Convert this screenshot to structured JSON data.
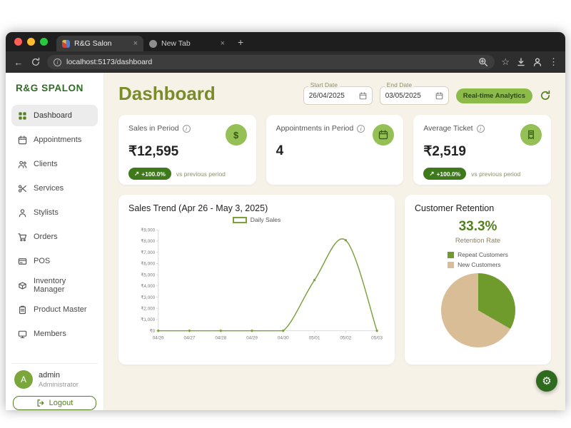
{
  "theme": {
    "brand_green": "#2f6b24",
    "heading_olive": "#7a8b29",
    "accent_green_dark": "#2f6b1f",
    "line_green": "#7ba23a",
    "icon_circle_green": "#94c056",
    "badge_green": "#8cbb4a",
    "cream_background": "#f7f2e8",
    "pie_tan": "#d9bd97"
  },
  "browser": {
    "tabs": [
      {
        "title": "R&G Salon"
      },
      {
        "title": "New Tab"
      }
    ],
    "url": "localhost:5173/dashboard"
  },
  "sidebar": {
    "brand": "R&G SPALON",
    "items": [
      {
        "label": "Dashboard"
      },
      {
        "label": "Appointments"
      },
      {
        "label": "Clients"
      },
      {
        "label": "Services"
      },
      {
        "label": "Stylists"
      },
      {
        "label": "Orders"
      },
      {
        "label": "POS"
      },
      {
        "label": "Inventory Manager"
      },
      {
        "label": "Product Master"
      },
      {
        "label": "Members"
      }
    ],
    "user": {
      "initial": "A",
      "name": "admin",
      "role": "Administrator"
    },
    "logout_label": "Logout"
  },
  "header": {
    "title": "Dashboard",
    "start_date": {
      "label": "Start Date",
      "value": "26/04/2025"
    },
    "end_date": {
      "label": "End Date",
      "value": "03/05/2025"
    },
    "analytics_badge": "Real-time Analytics"
  },
  "stats": [
    {
      "label": "Sales in Period",
      "value": "₹12,595",
      "delta": "+100.0%",
      "delta_note": "vs previous period"
    },
    {
      "label": "Appointments in Period",
      "value": "4"
    },
    {
      "label": "Average Ticket",
      "value": "₹2,519",
      "delta": "+100.0%",
      "delta_note": "vs previous period"
    }
  ],
  "retention": {
    "title": "Customer Retention",
    "value": "33.3%",
    "subtitle": "Retention Rate",
    "legend": [
      {
        "label": "Repeat Customers",
        "color": "#6f9b2c"
      },
      {
        "label": "New Customers",
        "color": "#d9bd97"
      }
    ]
  },
  "chart_data": [
    {
      "type": "line",
      "title": "Sales Trend (Apr 26 - May 3, 2025)",
      "legend": [
        "Daily Sales"
      ],
      "x": [
        "04/26",
        "04/27",
        "04/28",
        "04/29",
        "04/30",
        "05/01",
        "05/02",
        "05/03"
      ],
      "series": [
        {
          "name": "Daily Sales",
          "values": [
            0,
            0,
            0,
            0,
            0,
            4519,
            8076,
            0
          ]
        }
      ],
      "ylim": [
        0,
        9000
      ],
      "ytick_step": 1000,
      "ytick_prefix": "₹",
      "line_color": "#7ba23a",
      "grid": false,
      "legend_position": "top"
    },
    {
      "type": "pie",
      "title": "Customer Retention",
      "labels": [
        "Repeat Customers",
        "New Customers"
      ],
      "values": [
        33.3,
        66.7
      ],
      "colors": [
        "#6f9b2c",
        "#d9bd97"
      ]
    }
  ]
}
